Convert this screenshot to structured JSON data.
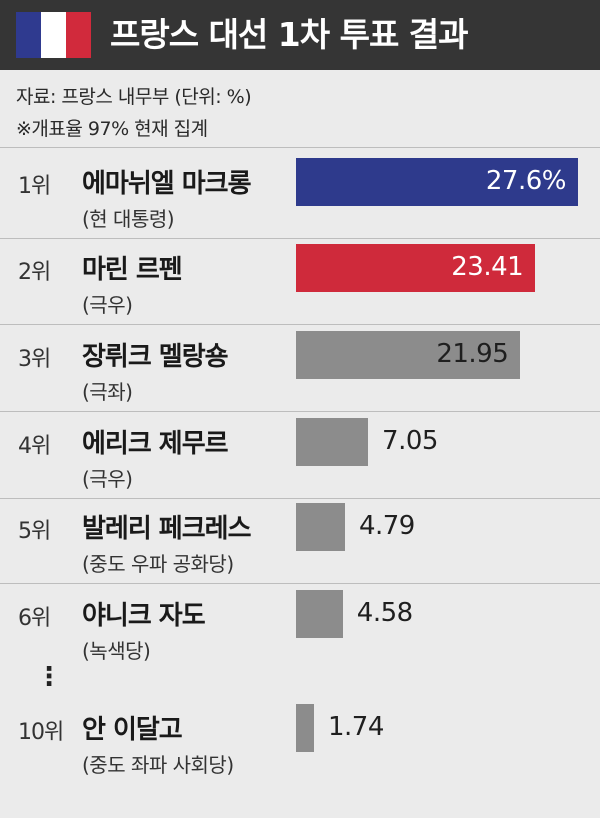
{
  "header": {
    "title": "프랑스 대선 1차 투표 결과",
    "flag_colors": [
      "#2f3a8f",
      "#ffffff",
      "#d12a3c"
    ]
  },
  "source": "자료: 프랑스 내무부  (단위: %)",
  "note": "※개표율 97% 현재 집계",
  "ellipsis": "⋮",
  "chart_data": {
    "type": "bar",
    "orientation": "horizontal",
    "unit": "%",
    "xlim": [
      0,
      27.6
    ],
    "categories": [
      "에마뉘엘 마크롱",
      "마린 르펜",
      "장뤼크 멜랑숑",
      "에리크 제무르",
      "발레리 페크레스",
      "야니크 자도",
      "안 이달고"
    ],
    "values": [
      27.6,
      23.41,
      21.95,
      7.05,
      4.79,
      4.58,
      1.74
    ],
    "rows": [
      {
        "rank": "1위",
        "name": "에마뉘엘 마크롱",
        "party": "(현 대통령)",
        "value": 27.6,
        "label": "27.6%",
        "color": "#2e3a8c",
        "label_inside": true
      },
      {
        "rank": "2위",
        "name": "마린 르펜",
        "party": "(극우)",
        "value": 23.41,
        "label": "23.41",
        "color": "#cf2a3b",
        "label_inside": true
      },
      {
        "rank": "3위",
        "name": "장뤼크 멜랑숑",
        "party": "(극좌)",
        "value": 21.95,
        "label": "21.95",
        "color": "#8c8c8c",
        "label_inside": true
      },
      {
        "rank": "4위",
        "name": "에리크 제무르",
        "party": "(극우)",
        "value": 7.05,
        "label": "7.05",
        "color": "#8c8c8c",
        "label_inside": false
      },
      {
        "rank": "5위",
        "name": "발레리 페크레스",
        "party": "(중도 우파 공화당)",
        "value": 4.79,
        "label": "4.79",
        "color": "#8c8c8c",
        "label_inside": false
      },
      {
        "rank": "6위",
        "name": "야니크 자도",
        "party": "(녹색당)",
        "value": 4.58,
        "label": "4.58",
        "color": "#8c8c8c",
        "label_inside": false
      },
      {
        "rank": "10위",
        "name": "안 이달고",
        "party": "(중도 좌파 사회당)",
        "value": 1.74,
        "label": "1.74",
        "color": "#8c8c8c",
        "label_inside": false
      }
    ]
  }
}
